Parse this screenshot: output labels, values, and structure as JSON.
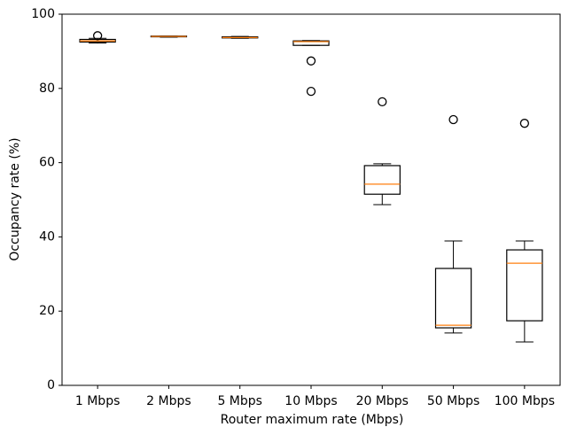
{
  "chart_data": {
    "type": "box",
    "x_label": "Router maximum rate (Mbps)",
    "y_label": "Occupancy rate (%)",
    "categories": [
      "1 Mbps",
      "2 Mbps",
      "5 Mbps",
      "10 Mbps",
      "20 Mbps",
      "50 Mbps",
      "100 Mbps"
    ],
    "boxes": [
      {
        "whislo": 92.2,
        "q1": 92.5,
        "med": 92.8,
        "q3": 93.2,
        "whishi": 93.5,
        "fliers": [
          94.2
        ]
      },
      {
        "whislo": 93.8,
        "q1": 93.9,
        "med": 94.0,
        "q3": 94.1,
        "whishi": 94.1,
        "fliers": []
      },
      {
        "whislo": 93.5,
        "q1": 93.6,
        "med": 93.7,
        "q3": 93.9,
        "whishi": 94.0,
        "fliers": []
      },
      {
        "whislo": 91.6,
        "q1": 91.6,
        "med": 92.6,
        "q3": 92.8,
        "whishi": 92.9,
        "fliers": [
          87.4,
          79.2
        ]
      },
      {
        "whislo": 48.7,
        "q1": 51.5,
        "med": 54.2,
        "q3": 59.2,
        "whishi": 59.7,
        "fliers": [
          76.4
        ]
      },
      {
        "whislo": 14.1,
        "q1": 15.5,
        "med": 16.2,
        "q3": 31.5,
        "whishi": 38.9,
        "fliers": [
          71.6
        ]
      },
      {
        "whislo": 11.7,
        "q1": 17.4,
        "med": 32.9,
        "q3": 36.5,
        "whishi": 38.9,
        "fliers": [
          70.6
        ]
      }
    ],
    "box_color": "#000000",
    "median_color": "#ff7f0e",
    "ylim": [
      0,
      100
    ],
    "yticks": [
      0,
      20,
      40,
      60,
      80,
      100
    ],
    "grid": false
  }
}
